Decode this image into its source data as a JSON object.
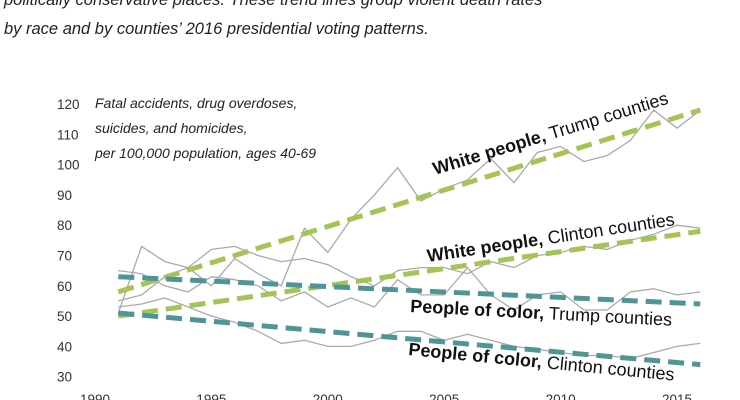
{
  "intro": {
    "line1": "politically conservative places. These trend lines group violent death rates",
    "line2": "by race and by counties’ 2016 presidential voting patterns."
  },
  "chart_data": {
    "type": "line",
    "title": "",
    "xlabel": "",
    "ylabel": "",
    "note": [
      "Fatal accidents, drug overdoses,",
      "suicides, and homicides,",
      "per 100,000 population, ages 40-69"
    ],
    "xlim": [
      1990,
      2016
    ],
    "ylim": [
      30,
      125
    ],
    "x_ticks": [
      1990,
      1995,
      2000,
      2005,
      2010,
      2015
    ],
    "y_ticks": [
      30,
      40,
      50,
      60,
      70,
      80,
      90,
      100,
      110,
      120
    ],
    "colors": {
      "white": "#a5c456",
      "poc": "#4f9497",
      "actual": "#aaaaaa"
    },
    "x": [
      1991,
      1992,
      1993,
      1994,
      1995,
      1996,
      1997,
      1998,
      1999,
      2000,
      2001,
      2002,
      2003,
      2004,
      2005,
      2006,
      2007,
      2008,
      2009,
      2010,
      2011,
      2012,
      2013,
      2014,
      2015,
      2016
    ],
    "series": [
      {
        "key": "white_trump",
        "label_bold": "White people,",
        "label_rest": " Trump counties",
        "actual": [
          51,
          73,
          68,
          66,
          60,
          69,
          64,
          60,
          79,
          71,
          82,
          90,
          99,
          88,
          92,
          95,
          102,
          94,
          104,
          106,
          101,
          103,
          108,
          118,
          112,
          118
        ],
        "trend": [
          58,
          118
        ]
      },
      {
        "key": "white_clinton",
        "label_bold": "White people,",
        "label_rest": " Clinton counties",
        "actual": [
          55,
          57,
          63,
          66,
          72,
          73,
          70,
          68,
          69,
          67,
          63,
          60,
          65,
          66,
          66,
          64,
          68,
          66,
          70,
          71,
          73,
          72,
          75,
          77,
          80,
          79
        ],
        "trend": [
          50,
          78
        ]
      },
      {
        "key": "poc_trump",
        "label_bold": "People of color,",
        "label_rest": " Trump counties",
        "actual": [
          65,
          64,
          60,
          58,
          63,
          62,
          60,
          55,
          58,
          53,
          56,
          53,
          62,
          57,
          57,
          66,
          57,
          52,
          57,
          58,
          52,
          52,
          58,
          59,
          57,
          58
        ],
        "trend": [
          63,
          54
        ]
      },
      {
        "key": "poc_clinton",
        "label_bold": "People of color,",
        "label_rest": " Clinton counties",
        "actual": [
          53,
          54,
          56,
          53,
          50,
          48,
          45,
          41,
          42,
          40,
          40,
          42,
          45,
          45,
          42,
          44,
          42,
          40,
          39,
          38,
          37,
          37,
          36,
          38,
          40,
          41
        ],
        "trend": [
          51,
          34
        ]
      }
    ]
  }
}
